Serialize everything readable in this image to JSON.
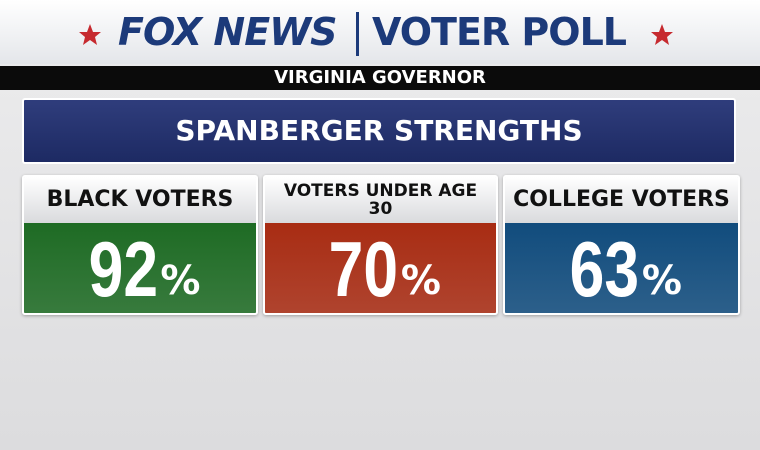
{
  "header": {
    "logo": "FOX NEWS",
    "title": "VOTER POLL",
    "subtitle": "VIRGINIA GOVERNOR"
  },
  "banner": "SPANBERGER STRENGTHS",
  "cards": [
    {
      "label": "BLACK VOTERS",
      "value": 92,
      "unit": "%",
      "color": "#1e6b24"
    },
    {
      "label": "VOTERS UNDER AGE 30",
      "value": 70,
      "unit": "%",
      "color": "#a82c13"
    },
    {
      "label": "COLLEGE VOTERS",
      "value": 63,
      "unit": "%",
      "color": "#114c7d"
    }
  ]
}
